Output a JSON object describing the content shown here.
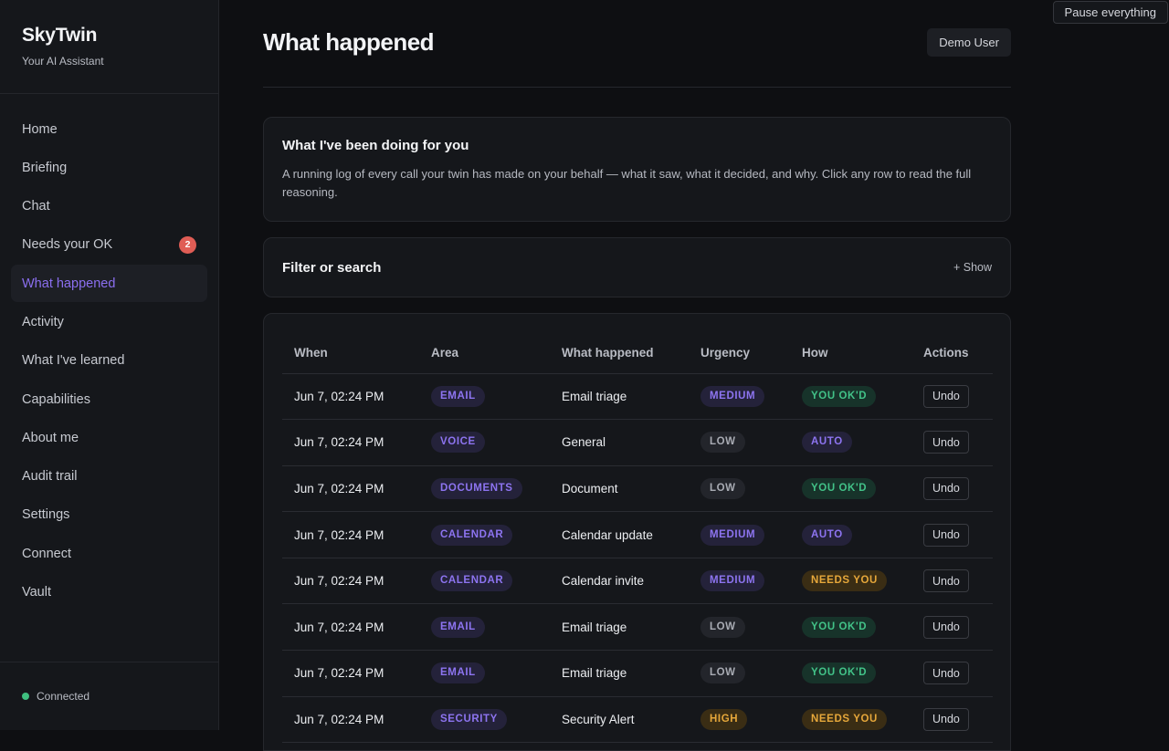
{
  "app": {
    "name": "SkyTwin",
    "tagline": "Your AI Assistant"
  },
  "sidebar": {
    "items": [
      {
        "label": "Home"
      },
      {
        "label": "Briefing"
      },
      {
        "label": "Chat"
      },
      {
        "label": "Needs your OK",
        "badge": "2"
      },
      {
        "label": "What happened",
        "active": true
      },
      {
        "label": "Activity"
      },
      {
        "label": "What I've learned"
      },
      {
        "label": "Capabilities"
      },
      {
        "label": "About me"
      },
      {
        "label": "Audit trail"
      },
      {
        "label": "Settings"
      },
      {
        "label": "Connect"
      },
      {
        "label": "Vault"
      }
    ],
    "status": "Connected"
  },
  "top_action": {
    "pause_label": "Pause everything"
  },
  "header": {
    "title": "What happened",
    "user": "Demo User"
  },
  "intro": {
    "title": "What I've been doing for you",
    "text": "A running log of every call your twin has made on your behalf — what it saw, what it decided, and why. Click any row to read the full reasoning."
  },
  "filter": {
    "title": "Filter or search",
    "toggle": "+ Show"
  },
  "table": {
    "columns": [
      "When",
      "Area",
      "What happened",
      "Urgency",
      "How",
      "Actions"
    ],
    "rows": [
      {
        "when": "Jun 7, 02:24 PM",
        "area": "EMAIL",
        "what": "Email triage",
        "urgency": "MEDIUM",
        "how": "YOU OK'D",
        "action": "Undo"
      },
      {
        "when": "Jun 7, 02:24 PM",
        "area": "VOICE",
        "what": "General",
        "urgency": "LOW",
        "how": "AUTO",
        "action": "Undo"
      },
      {
        "when": "Jun 7, 02:24 PM",
        "area": "DOCUMENTS",
        "what": "Document",
        "urgency": "LOW",
        "how": "YOU OK'D",
        "action": "Undo"
      },
      {
        "when": "Jun 7, 02:24 PM",
        "area": "CALENDAR",
        "what": "Calendar update",
        "urgency": "MEDIUM",
        "how": "AUTO",
        "action": "Undo"
      },
      {
        "when": "Jun 7, 02:24 PM",
        "area": "CALENDAR",
        "what": "Calendar invite",
        "urgency": "MEDIUM",
        "how": "NEEDS YOU",
        "action": "Undo"
      },
      {
        "when": "Jun 7, 02:24 PM",
        "area": "EMAIL",
        "what": "Email triage",
        "urgency": "LOW",
        "how": "YOU OK'D",
        "action": "Undo"
      },
      {
        "when": "Jun 7, 02:24 PM",
        "area": "EMAIL",
        "what": "Email triage",
        "urgency": "LOW",
        "how": "YOU OK'D",
        "action": "Undo"
      },
      {
        "when": "Jun 7, 02:24 PM",
        "area": "SECURITY",
        "what": "Security Alert",
        "urgency": "HIGH",
        "how": "NEEDS YOU",
        "action": "Undo"
      }
    ]
  },
  "colors": {
    "accent": "#8b6ff0",
    "ok": "#42c288",
    "warn": "#e6a73a",
    "badge": "#e05d55",
    "status_dot": "#3fbf7f"
  }
}
